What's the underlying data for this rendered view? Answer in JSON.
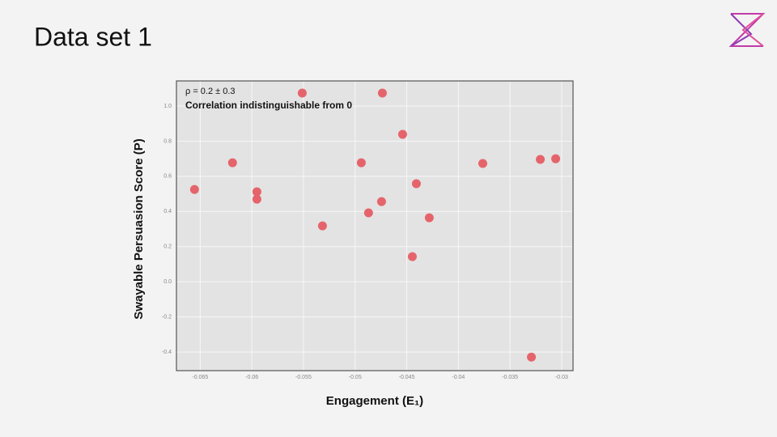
{
  "slide_title": "Data set 1",
  "chart_data": {
    "type": "scatter",
    "annotations": [
      "ρ = 0.2 ± 0.3",
      "Correlation indistinguishable from 0"
    ],
    "x_label": "Engagement (E₁)",
    "y_label": "Swayable Persuasion Score (P)",
    "x": [
      -0.06555,
      -0.06187,
      -0.05951,
      -0.05951,
      -0.05512,
      -0.05316,
      -0.0494,
      -0.0487,
      -0.04736,
      -0.04744,
      -0.0454,
      -0.04446,
      -0.04407,
      -0.04282,
      -0.03764,
      -0.03293,
      -0.03207,
      -0.03058
    ],
    "values": [
      0.525,
      0.677,
      0.512,
      0.47,
      1.074,
      0.318,
      0.677,
      0.392,
      1.074,
      0.456,
      0.839,
      0.143,
      0.558,
      0.364,
      0.673,
      -0.429,
      0.696,
      0.7
    ],
    "color": "#e5646b",
    "xlim": [
      -0.0673,
      -0.0289
    ],
    "xticks": [
      -0.065,
      -0.06,
      -0.055,
      -0.05,
      -0.045,
      -0.04,
      -0.035,
      -0.03
    ],
    "ylim": [
      -0.506,
      1.143
    ],
    "yticks": [
      {
        "value": -0.4,
        "label": "-0.4"
      },
      {
        "value": -0.2,
        "label": "-0.2"
      },
      {
        "value": 0,
        "label": "0.0"
      },
      0.2,
      0.4,
      0.6,
      0.8,
      {
        "value": 1,
        "label": "1.0"
      }
    ],
    "grid": true
  }
}
